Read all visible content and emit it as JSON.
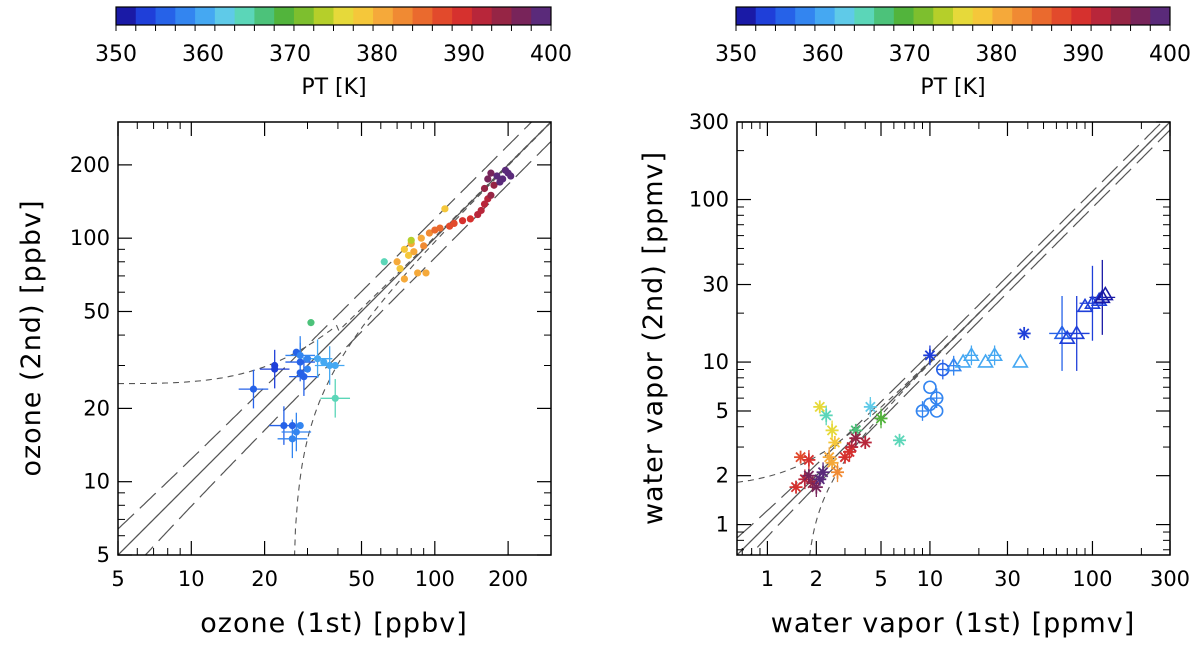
{
  "colorbar": {
    "label": "PT [K]",
    "min": 350,
    "max": 400,
    "ticks": [
      "350",
      "360",
      "370",
      "380",
      "390",
      "400"
    ],
    "colors": [
      "#1a1aa6",
      "#1f3fd9",
      "#2662e8",
      "#3385f0",
      "#45a8f2",
      "#5fcae8",
      "#5bd6b8",
      "#4cc27a",
      "#52b43c",
      "#7dbf2e",
      "#b5cf2a",
      "#e6d93a",
      "#f5c73a",
      "#f5a93a",
      "#f08a33",
      "#ea6a2e",
      "#e24a2c",
      "#d6312e",
      "#b8263a",
      "#962545",
      "#78245a",
      "#5a2a7a"
    ]
  },
  "chart_data": [
    {
      "type": "scatter",
      "title": "",
      "xlabel": "ozone (1st) [ppbv]",
      "ylabel": "ozone (2nd) [ppbv]",
      "xscale": "log",
      "yscale": "log",
      "xlim": [
        5,
        300
      ],
      "ylim": [
        5,
        300
      ],
      "xticks": [
        "5",
        "10",
        "20",
        "50",
        "100",
        "200"
      ],
      "yticks": [
        "5",
        "10",
        "20",
        "50",
        "100",
        "200"
      ],
      "reference_lines": [
        "1:1 line",
        "dashed envelope lines",
        "dotted uncertainty curves"
      ],
      "points": [
        {
          "x": 18,
          "y": 24,
          "pt": 356
        },
        {
          "x": 22,
          "y": 30,
          "pt": 354
        },
        {
          "x": 22,
          "y": 29,
          "pt": 354
        },
        {
          "x": 27,
          "y": 34,
          "pt": 356
        },
        {
          "x": 28,
          "y": 31,
          "pt": 356
        },
        {
          "x": 28,
          "y": 28,
          "pt": 356
        },
        {
          "x": 29,
          "y": 27,
          "pt": 356
        },
        {
          "x": 30,
          "y": 29,
          "pt": 357
        },
        {
          "x": 28,
          "y": 33,
          "pt": 357
        },
        {
          "x": 30,
          "y": 32,
          "pt": 357
        },
        {
          "x": 33,
          "y": 32,
          "pt": 360
        },
        {
          "x": 35,
          "y": 31,
          "pt": 360
        },
        {
          "x": 37,
          "y": 30,
          "pt": 360
        },
        {
          "x": 39,
          "y": 30,
          "pt": 360
        },
        {
          "x": 24,
          "y": 17,
          "pt": 355
        },
        {
          "x": 26,
          "y": 17,
          "pt": 356
        },
        {
          "x": 27,
          "y": 16,
          "pt": 357
        },
        {
          "x": 28,
          "y": 17,
          "pt": 357
        },
        {
          "x": 26,
          "y": 15,
          "pt": 357
        },
        {
          "x": 31,
          "y": 45,
          "pt": 368
        },
        {
          "x": 39,
          "y": 22,
          "pt": 364
        },
        {
          "x": 62,
          "y": 80,
          "pt": 364
        },
        {
          "x": 70,
          "y": 80,
          "pt": 380
        },
        {
          "x": 72,
          "y": 75,
          "pt": 379
        },
        {
          "x": 75,
          "y": 90,
          "pt": 378
        },
        {
          "x": 78,
          "y": 85,
          "pt": 379
        },
        {
          "x": 80,
          "y": 95,
          "pt": 380
        },
        {
          "x": 82,
          "y": 88,
          "pt": 380
        },
        {
          "x": 85,
          "y": 72,
          "pt": 381
        },
        {
          "x": 88,
          "y": 100,
          "pt": 381
        },
        {
          "x": 90,
          "y": 93,
          "pt": 382
        },
        {
          "x": 92,
          "y": 72,
          "pt": 381
        },
        {
          "x": 75,
          "y": 68,
          "pt": 380
        },
        {
          "x": 80,
          "y": 98,
          "pt": 374
        },
        {
          "x": 95,
          "y": 105,
          "pt": 384
        },
        {
          "x": 100,
          "y": 108,
          "pt": 385
        },
        {
          "x": 110,
          "y": 132,
          "pt": 379
        },
        {
          "x": 105,
          "y": 110,
          "pt": 386
        },
        {
          "x": 115,
          "y": 112,
          "pt": 387
        },
        {
          "x": 120,
          "y": 115,
          "pt": 388
        },
        {
          "x": 130,
          "y": 118,
          "pt": 389
        },
        {
          "x": 140,
          "y": 120,
          "pt": 390
        },
        {
          "x": 150,
          "y": 125,
          "pt": 391
        },
        {
          "x": 155,
          "y": 130,
          "pt": 392
        },
        {
          "x": 160,
          "y": 138,
          "pt": 392
        },
        {
          "x": 165,
          "y": 145,
          "pt": 393
        },
        {
          "x": 170,
          "y": 150,
          "pt": 394
        },
        {
          "x": 160,
          "y": 160,
          "pt": 394
        },
        {
          "x": 175,
          "y": 165,
          "pt": 395
        },
        {
          "x": 165,
          "y": 175,
          "pt": 396
        },
        {
          "x": 170,
          "y": 185,
          "pt": 397
        },
        {
          "x": 180,
          "y": 180,
          "pt": 398
        },
        {
          "x": 190,
          "y": 175,
          "pt": 398
        },
        {
          "x": 200,
          "y": 185,
          "pt": 399
        },
        {
          "x": 185,
          "y": 170,
          "pt": 398
        },
        {
          "x": 195,
          "y": 190,
          "pt": 399
        },
        {
          "x": 205,
          "y": 180,
          "pt": 399
        }
      ]
    },
    {
      "type": "scatter",
      "title": "",
      "xlabel": "water vapor (1st) [ppmv]",
      "ylabel": "water vapor (2nd) [ppmv]",
      "xscale": "log",
      "yscale": "log",
      "xlim": [
        0.65,
        300
      ],
      "ylim": [
        0.65,
        300
      ],
      "xticks": [
        "1",
        "2",
        "5",
        "10",
        "30",
        "100",
        "300"
      ],
      "yticks": [
        "1",
        "2",
        "5",
        "10",
        "30",
        "100",
        "300"
      ],
      "reference_lines": [
        "1:1 line",
        "dashed envelope lines",
        "dotted uncertainty curves"
      ],
      "points": [
        {
          "x": 10,
          "y": 11,
          "pt": 353,
          "m": "star"
        },
        {
          "x": 38,
          "y": 15,
          "pt": 353,
          "m": "star"
        },
        {
          "x": 12,
          "y": 9,
          "pt": 356,
          "m": "circle"
        },
        {
          "x": 10,
          "y": 7,
          "pt": 357,
          "m": "circle"
        },
        {
          "x": 11,
          "y": 6,
          "pt": 358,
          "m": "circle"
        },
        {
          "x": 10,
          "y": 5.5,
          "pt": 358,
          "m": "circle"
        },
        {
          "x": 14,
          "y": 9.5,
          "pt": 359,
          "m": "triangle"
        },
        {
          "x": 16,
          "y": 10,
          "pt": 360,
          "m": "triangle"
        },
        {
          "x": 18,
          "y": 11,
          "pt": 360,
          "m": "triangle"
        },
        {
          "x": 22,
          "y": 10,
          "pt": 360,
          "m": "triangle"
        },
        {
          "x": 25,
          "y": 11,
          "pt": 360,
          "m": "triangle"
        },
        {
          "x": 36,
          "y": 10,
          "pt": 360,
          "m": "triangle"
        },
        {
          "x": 65,
          "y": 15,
          "pt": 355,
          "m": "triangle"
        },
        {
          "x": 70,
          "y": 14,
          "pt": 354,
          "m": "triangle"
        },
        {
          "x": 80,
          "y": 15,
          "pt": 354,
          "m": "triangle"
        },
        {
          "x": 90,
          "y": 22,
          "pt": 354,
          "m": "triangle"
        },
        {
          "x": 100,
          "y": 23,
          "pt": 353,
          "m": "triangle"
        },
        {
          "x": 110,
          "y": 24,
          "pt": 353,
          "m": "triangle"
        },
        {
          "x": 115,
          "y": 25,
          "pt": 352,
          "m": "triangle"
        },
        {
          "x": 120,
          "y": 26,
          "pt": 352,
          "m": "triangle"
        },
        {
          "x": 9,
          "y": 5,
          "pt": 358,
          "m": "circle"
        },
        {
          "x": 11,
          "y": 5,
          "pt": 358,
          "m": "circle"
        },
        {
          "x": 4.3,
          "y": 5.3,
          "pt": 362,
          "m": "star"
        },
        {
          "x": 6.5,
          "y": 3.3,
          "pt": 364,
          "m": "star"
        },
        {
          "x": 2.3,
          "y": 4.7,
          "pt": 364,
          "m": "star"
        },
        {
          "x": 3.5,
          "y": 3.8,
          "pt": 368,
          "m": "star"
        },
        {
          "x": 5,
          "y": 4.5,
          "pt": 370,
          "m": "star"
        },
        {
          "x": 2.1,
          "y": 5.3,
          "pt": 376,
          "m": "star"
        },
        {
          "x": 2.5,
          "y": 3.8,
          "pt": 377,
          "m": "star"
        },
        {
          "x": 2.6,
          "y": 3.2,
          "pt": 378,
          "m": "star"
        },
        {
          "x": 2.4,
          "y": 2.6,
          "pt": 380,
          "m": "star"
        },
        {
          "x": 2.5,
          "y": 2.4,
          "pt": 381,
          "m": "star"
        },
        {
          "x": 2.7,
          "y": 2.1,
          "pt": 382,
          "m": "star"
        },
        {
          "x": 1.6,
          "y": 2.6,
          "pt": 388,
          "m": "star"
        },
        {
          "x": 1.8,
          "y": 2.5,
          "pt": 390,
          "m": "star"
        },
        {
          "x": 3.0,
          "y": 2.6,
          "pt": 389,
          "m": "star"
        },
        {
          "x": 3.3,
          "y": 3.0,
          "pt": 391,
          "m": "star"
        },
        {
          "x": 4.0,
          "y": 3.2,
          "pt": 392,
          "m": "star"
        },
        {
          "x": 3.2,
          "y": 2.8,
          "pt": 390,
          "m": "star"
        },
        {
          "x": 1.5,
          "y": 1.7,
          "pt": 390,
          "m": "star"
        },
        {
          "x": 1.7,
          "y": 1.9,
          "pt": 392,
          "m": "star"
        },
        {
          "x": 1.9,
          "y": 1.8,
          "pt": 394,
          "m": "star"
        },
        {
          "x": 2.0,
          "y": 1.7,
          "pt": 396,
          "m": "star"
        },
        {
          "x": 2.1,
          "y": 1.9,
          "pt": 398,
          "m": "star"
        },
        {
          "x": 2.2,
          "y": 2.1,
          "pt": 398,
          "m": "star"
        },
        {
          "x": 1.8,
          "y": 2.0,
          "pt": 396,
          "m": "star"
        },
        {
          "x": 3.5,
          "y": 3.4,
          "pt": 394,
          "m": "star"
        }
      ]
    }
  ]
}
